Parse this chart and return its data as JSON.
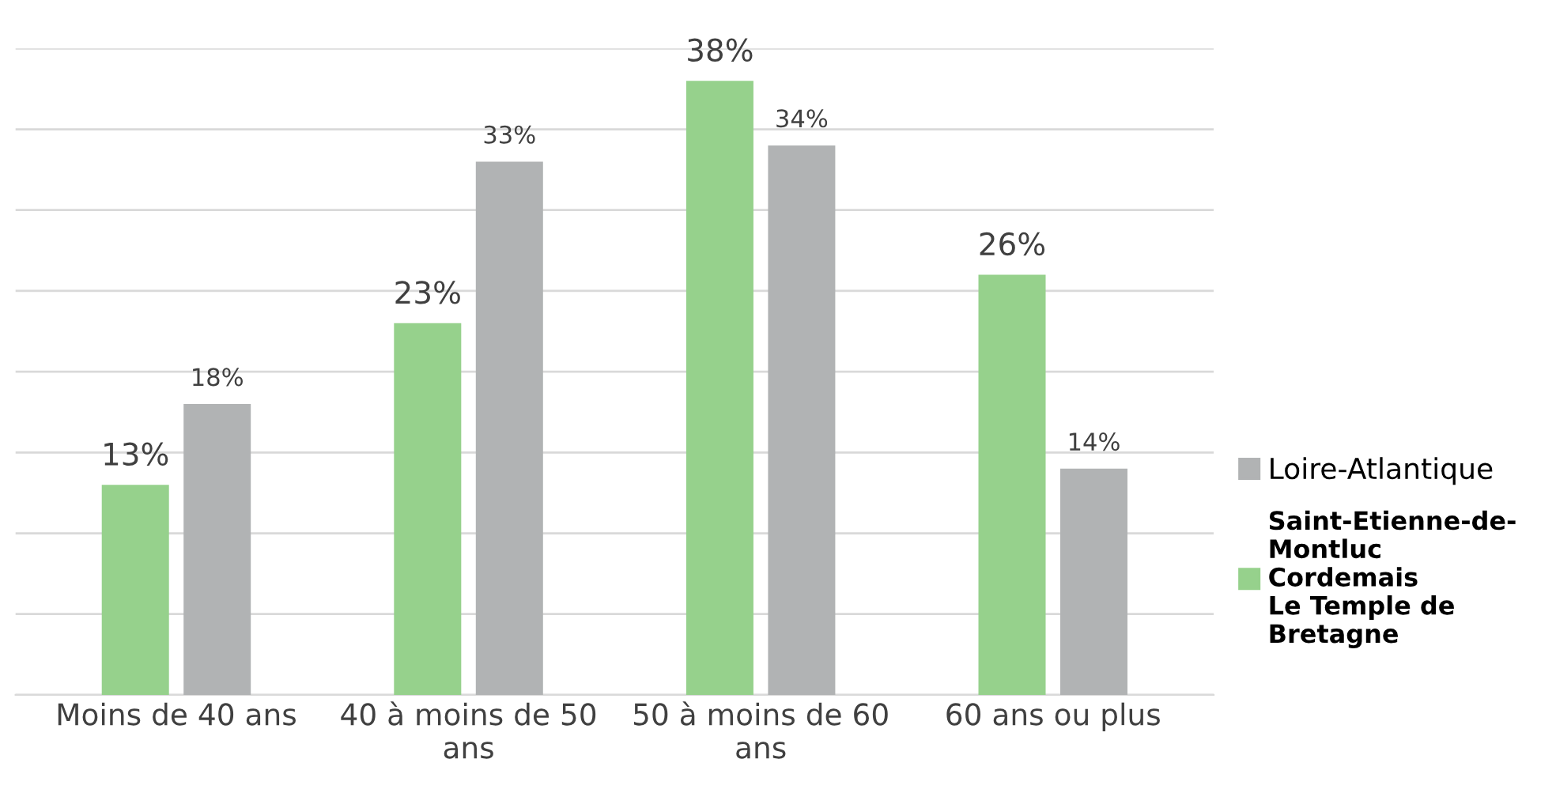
{
  "chart_data": {
    "type": "bar",
    "categories": [
      "Moins de 40 ans",
      "40 à moins de 50\nans",
      "50 à moins de 60\nans",
      "60 ans ou plus"
    ],
    "series": [
      {
        "name": "Saint-Etienne-de-\nMontluc\nCordemais\nLe Temple de\nBretagne",
        "color": "#96d18c",
        "values": [
          13,
          23,
          38,
          26
        ],
        "value_labels": [
          "13%",
          "23%",
          "38%",
          "26%"
        ]
      },
      {
        "name": "Loire-Atlantique",
        "color": "#b1b3b4",
        "values": [
          18,
          33,
          34,
          14
        ],
        "value_labels": [
          "18%",
          "33%",
          "34%",
          "14%"
        ]
      }
    ],
    "ylim": [
      0,
      40
    ],
    "yticks": [
      {
        "value": 0,
        "label": null
      },
      {
        "value": 5,
        "label": null
      },
      {
        "value": 10,
        "label": null
      },
      {
        "value": 15,
        "label": null
      },
      {
        "value": 20,
        "label": null
      },
      {
        "value": 25,
        "label": null
      },
      {
        "value": 30,
        "label": null
      },
      {
        "value": 35,
        "label": null
      },
      {
        "value": 40,
        "label": null
      }
    ],
    "grid": "y",
    "legend": "right",
    "tick_labels": "x"
  }
}
